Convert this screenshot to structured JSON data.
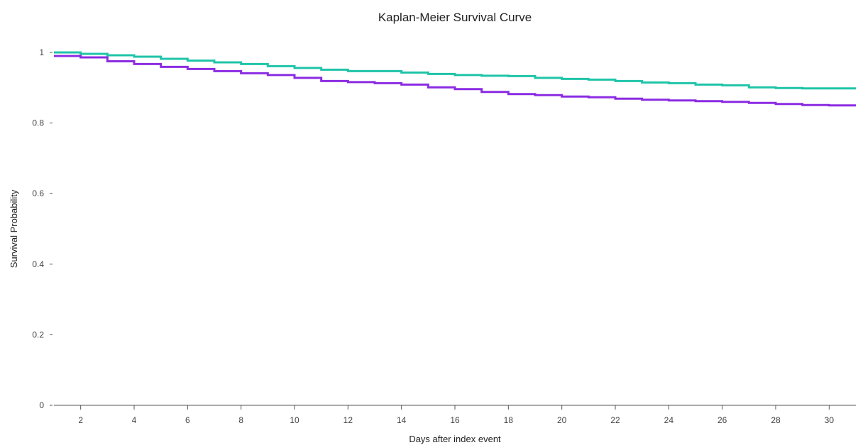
{
  "chart_data": {
    "type": "line",
    "step": true,
    "title": "Kaplan-Meier Survival Curve",
    "xlabel": "Days after index event",
    "ylabel": "Survival Probability",
    "xlim": [
      1,
      31
    ],
    "ylim": [
      0,
      1
    ],
    "x_ticks": [
      2,
      4,
      6,
      8,
      10,
      12,
      14,
      16,
      18,
      20,
      22,
      24,
      26,
      28,
      30
    ],
    "y_ticks": [
      0,
      0.2,
      0.4,
      0.6,
      0.8,
      1
    ],
    "y_tick_labels": [
      "0",
      "0.2",
      "0.4",
      "0.6",
      "0.8",
      "1"
    ],
    "grid": false,
    "x": [
      1,
      2,
      3,
      4,
      5,
      6,
      7,
      8,
      9,
      10,
      11,
      12,
      13,
      14,
      15,
      16,
      17,
      18,
      19,
      20,
      21,
      22,
      23,
      24,
      25,
      26,
      27,
      28,
      29,
      30,
      31
    ],
    "series": [
      {
        "color": "#1fc4a8",
        "values": [
          1.0,
          0.996,
          0.992,
          0.988,
          0.982,
          0.977,
          0.972,
          0.967,
          0.961,
          0.956,
          0.951,
          0.947,
          0.947,
          0.943,
          0.939,
          0.936,
          0.934,
          0.933,
          0.928,
          0.925,
          0.923,
          0.919,
          0.915,
          0.913,
          0.909,
          0.907,
          0.901,
          0.899,
          0.898,
          0.898,
          0.898
        ]
      },
      {
        "color": "#8b2be2",
        "values": [
          0.99,
          0.986,
          0.975,
          0.967,
          0.959,
          0.953,
          0.947,
          0.941,
          0.936,
          0.928,
          0.919,
          0.916,
          0.913,
          0.909,
          0.901,
          0.896,
          0.888,
          0.882,
          0.879,
          0.875,
          0.873,
          0.869,
          0.866,
          0.864,
          0.862,
          0.86,
          0.857,
          0.854,
          0.851,
          0.85,
          0.85
        ]
      }
    ]
  }
}
